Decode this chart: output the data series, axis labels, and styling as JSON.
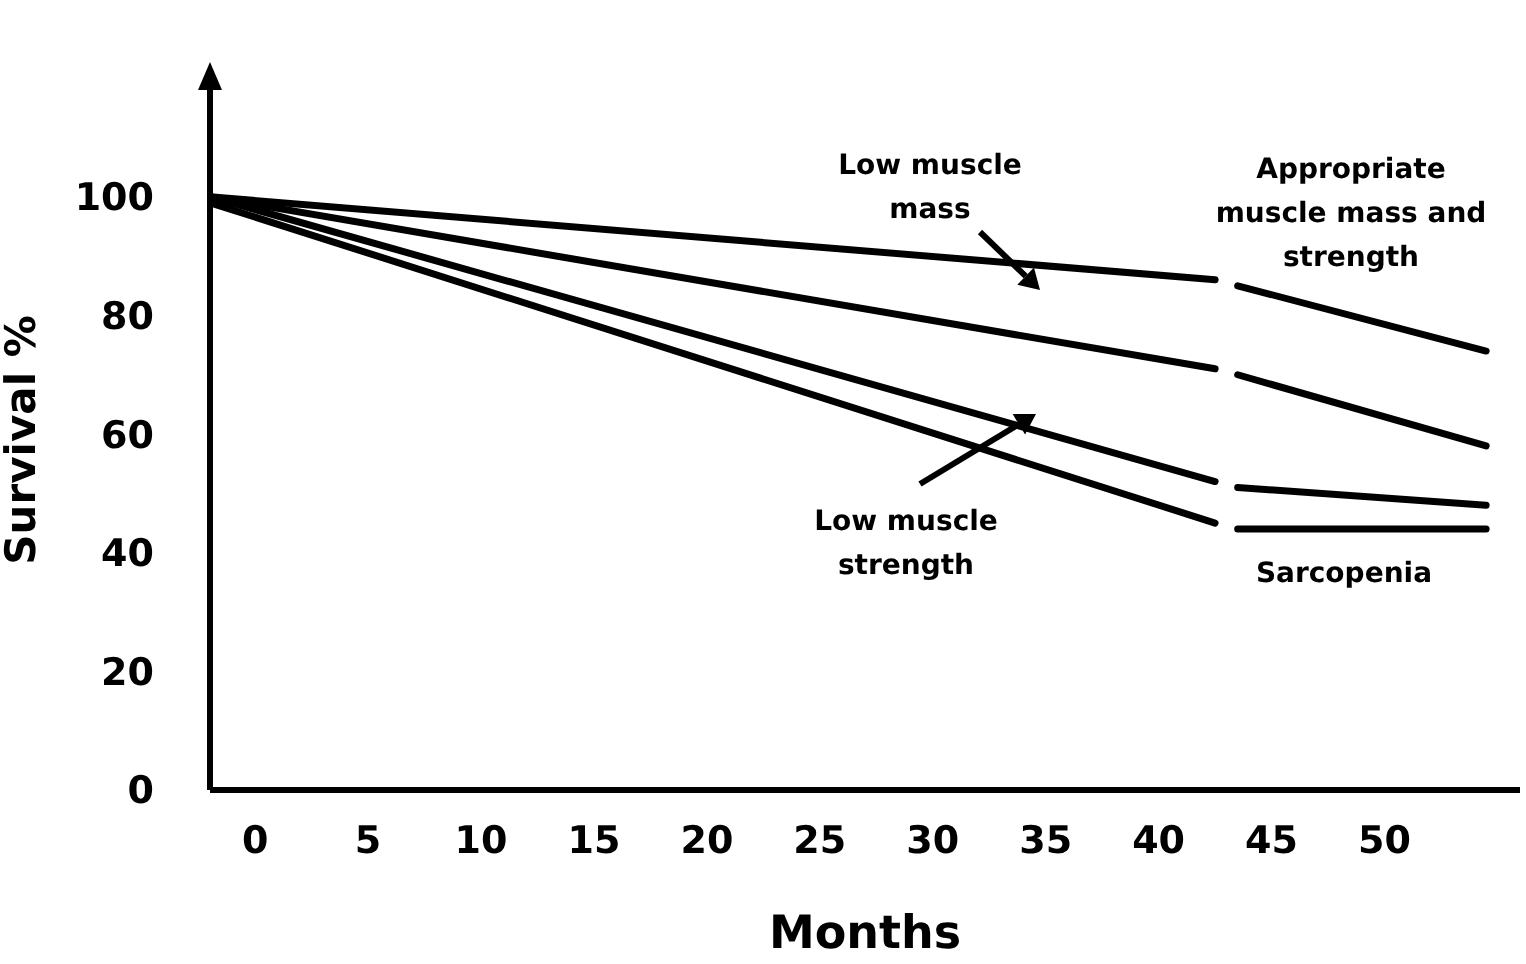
{
  "chart_data": {
    "type": "line",
    "xlabel": "Months",
    "ylabel": "Survival %",
    "xlim": [
      -2,
      56
    ],
    "xticks": [
      0,
      5,
      10,
      15,
      20,
      25,
      30,
      35,
      40,
      45,
      50
    ],
    "ylim": [
      0,
      118
    ],
    "yticks": [
      0,
      20,
      40,
      60,
      80,
      100
    ],
    "grid": false,
    "series": [
      {
        "color": "#000000",
        "x": [
          -2,
          42.5,
          43,
          43.5,
          54.5
        ],
        "values": [
          100,
          86,
          null,
          85,
          74
        ]
      },
      {
        "color": "#000000",
        "x": [
          -2,
          42.5,
          43,
          43.5,
          54.5
        ],
        "values": [
          100,
          71,
          null,
          70,
          58
        ]
      },
      {
        "color": "#000000",
        "x": [
          -2,
          42.5,
          43,
          43.5,
          54.5
        ],
        "values": [
          100,
          52,
          null,
          51,
          48
        ]
      },
      {
        "color": "#000000",
        "x": [
          -2,
          42.5,
          43,
          43.5,
          54.5
        ],
        "values": [
          99,
          45,
          null,
          44,
          44
        ]
      }
    ],
    "annotations": [
      "Low muscle mass",
      "Appropriate muscle mass and strength",
      "Low muscle strength",
      "Sarcopenia"
    ]
  }
}
